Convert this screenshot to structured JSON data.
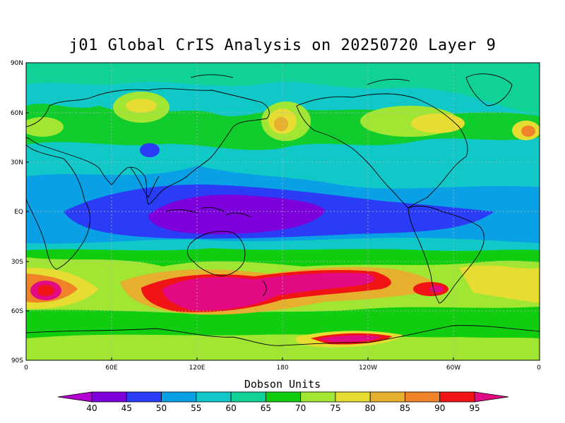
{
  "title": "j01 Global CrIS Analysis on 20250720 Layer 9",
  "units_label": "Dobson Units",
  "lat_labels": [
    "90N",
    "60N",
    "30N",
    "EQ",
    "30S",
    "60S",
    "90S"
  ],
  "lon_labels": [
    "0",
    "60E",
    "120E",
    "180",
    "120W",
    "60W",
    "0"
  ],
  "colorbar": {
    "levels": [
      40,
      45,
      50,
      55,
      60,
      65,
      70,
      75,
      80,
      85,
      90,
      95
    ],
    "colors": [
      "#b400d2",
      "#7d00dc",
      "#2a3cf5",
      "#0aa0e6",
      "#10c8c8",
      "#10d296",
      "#10cd10",
      "#a0e632",
      "#e6dc32",
      "#e6af2d",
      "#f08228",
      "#f01414",
      "#e10a82"
    ]
  },
  "colors": {
    "grid_line": "#b4b4b4",
    "coastline": "#000000",
    "background_field": "#10c8c8"
  }
}
